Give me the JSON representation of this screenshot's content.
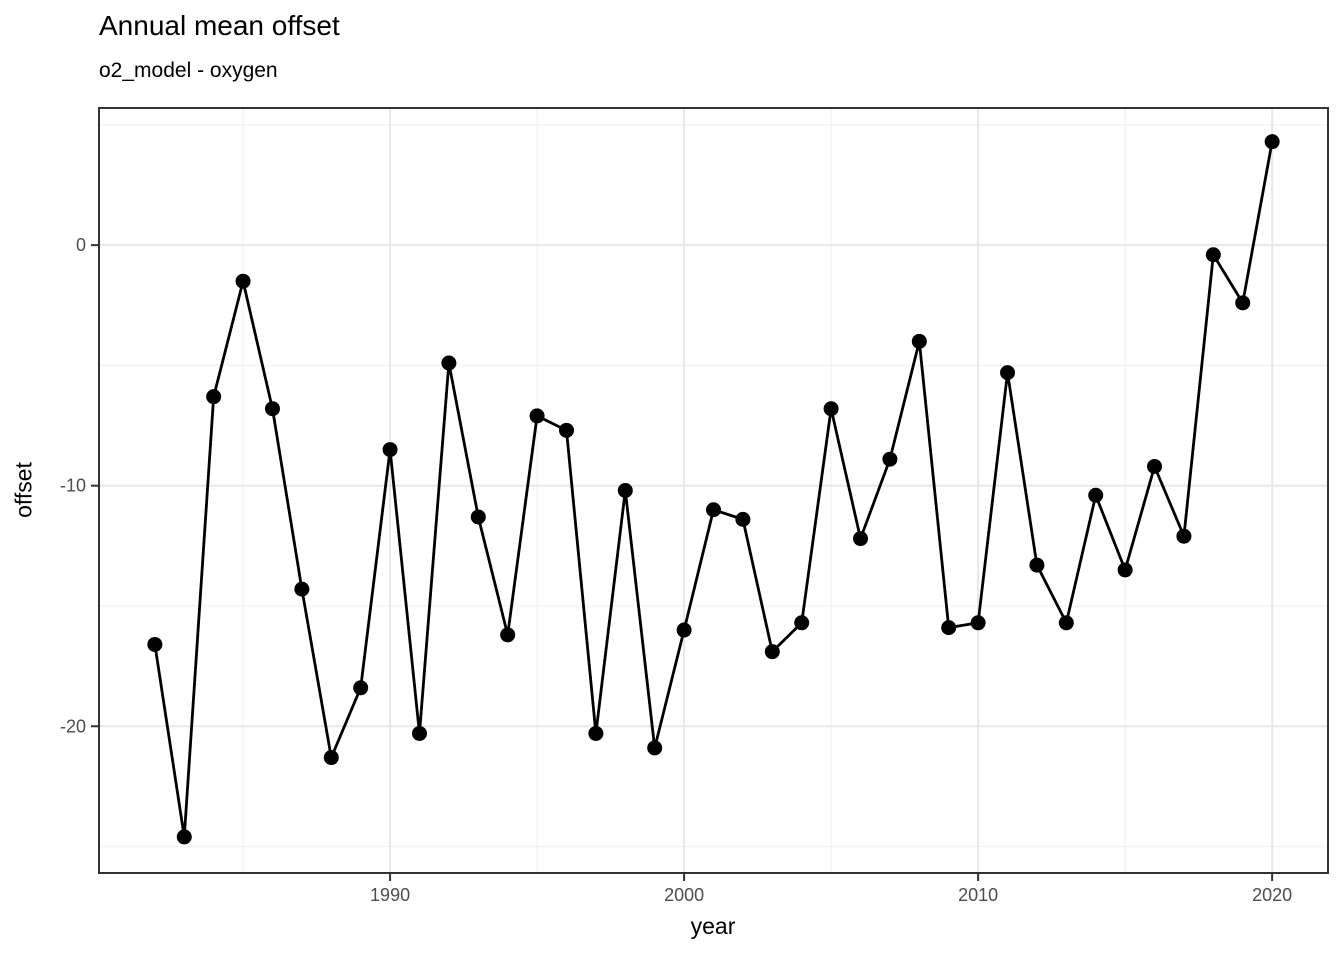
{
  "chart_data": {
    "type": "line",
    "title": "Annual mean offset",
    "subtitle": "o2_model - oxygen",
    "xlabel": "year",
    "ylabel": "offset",
    "series": [
      {
        "name": "offset",
        "x": [
          1982,
          1983,
          1984,
          1985,
          1986,
          1987,
          1988,
          1989,
          1990,
          1991,
          1992,
          1993,
          1994,
          1995,
          1996,
          1997,
          1998,
          1999,
          2000,
          2001,
          2002,
          2003,
          2004,
          2005,
          2006,
          2007,
          2008,
          2009,
          2010,
          2011,
          2012,
          2013,
          2014,
          2015,
          2016,
          2017,
          2018,
          2019,
          2020
        ],
        "y": [
          -16.6,
          -24.6,
          -6.3,
          -1.5,
          -6.8,
          -14.3,
          -21.3,
          -18.4,
          -8.5,
          -20.3,
          -4.9,
          -11.3,
          -16.2,
          -7.1,
          -7.7,
          -20.3,
          -10.2,
          -20.9,
          -16.0,
          -11.0,
          -11.4,
          -16.9,
          -15.7,
          -6.8,
          -12.2,
          -8.9,
          -4.0,
          -15.9,
          -15.7,
          -5.3,
          -13.3,
          -15.7,
          -10.4,
          -13.5,
          -9.2,
          -12.1,
          -0.4,
          -2.4,
          4.3
        ]
      }
    ],
    "xlim": [
      1980.1,
      2021.9
    ],
    "ylim": [
      -26.1,
      5.7
    ],
    "x_ticks": {
      "major": [
        1990,
        2000,
        2010,
        2020
      ],
      "labels": [
        "1990",
        "2000",
        "2010",
        "2020"
      ],
      "minor": [
        1985,
        1995,
        2005,
        2015
      ]
    },
    "y_ticks": {
      "major": [
        0,
        -10,
        -20
      ],
      "labels": [
        "0",
        "-10",
        "-20"
      ],
      "minor": [
        5,
        -5,
        -15,
        -25
      ]
    },
    "grid": "on",
    "legend": "none",
    "style": {
      "line_color": "#000000",
      "point_color": "#000000",
      "grid_major_color": "#e8e8e8",
      "grid_minor_color": "#f2f2f2",
      "panel_border_color": "#333333",
      "tick_color": "#333333",
      "tick_label_color": "#4d4d4d",
      "panel_background": "#ffffff"
    }
  }
}
